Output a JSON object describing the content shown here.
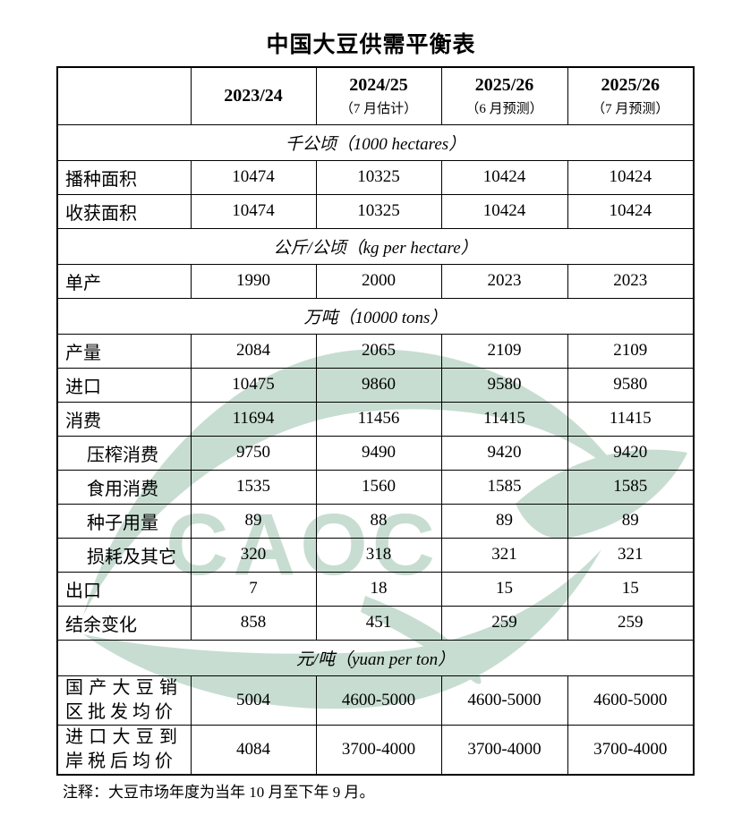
{
  "title": "中国大豆供需平衡表",
  "watermark": {
    "text": "CAOC",
    "color": "#c7ddd1"
  },
  "note": "注释：大豆市场年度为当年 10 月至下年 9 月。",
  "table": {
    "header": [
      {
        "year": "",
        "sub": ""
      },
      {
        "year": "2023/24",
        "sub": ""
      },
      {
        "year": "2024/25",
        "sub": "（7 月估计）"
      },
      {
        "year": "2025/26",
        "sub": "（6 月预测）"
      },
      {
        "year": "2025/26",
        "sub": "（7 月预测）"
      }
    ],
    "rows": [
      {
        "type": "section",
        "label": "千公顷（1000 hectares）"
      },
      {
        "type": "data",
        "label": "播种面积",
        "indent": false,
        "values": [
          "10474",
          "10325",
          "10424",
          "10424"
        ]
      },
      {
        "type": "data",
        "label": "收获面积",
        "indent": false,
        "values": [
          "10474",
          "10325",
          "10424",
          "10424"
        ]
      },
      {
        "type": "section",
        "label": "公斤/公顷（kg per hectare）"
      },
      {
        "type": "data",
        "label": "单产",
        "indent": false,
        "values": [
          "1990",
          "2000",
          "2023",
          "2023"
        ]
      },
      {
        "type": "section",
        "label": "万吨（10000 tons）"
      },
      {
        "type": "data",
        "label": "产量",
        "indent": false,
        "values": [
          "2084",
          "2065",
          "2109",
          "2109"
        ]
      },
      {
        "type": "data",
        "label": "进口",
        "indent": false,
        "values": [
          "10475",
          "9860",
          "9580",
          "9580"
        ]
      },
      {
        "type": "data",
        "label": "消费",
        "indent": false,
        "values": [
          "11694",
          "11456",
          "11415",
          "11415"
        ]
      },
      {
        "type": "data",
        "label": "压榨消费",
        "indent": true,
        "values": [
          "9750",
          "9490",
          "9420",
          "9420"
        ]
      },
      {
        "type": "data",
        "label": "食用消费",
        "indent": true,
        "values": [
          "1535",
          "1560",
          "1585",
          "1585"
        ]
      },
      {
        "type": "data",
        "label": "种子用量",
        "indent": true,
        "values": [
          "89",
          "88",
          "89",
          "89"
        ]
      },
      {
        "type": "data",
        "label": "损耗及其它",
        "indent": true,
        "values": [
          "320",
          "318",
          "321",
          "321"
        ]
      },
      {
        "type": "data",
        "label": "出口",
        "indent": false,
        "values": [
          "7",
          "18",
          "15",
          "15"
        ]
      },
      {
        "type": "data",
        "label": "结余变化",
        "indent": false,
        "values": [
          "858",
          "451",
          "259",
          "259"
        ]
      },
      {
        "type": "section",
        "label": "元/吨（yuan per ton）"
      },
      {
        "type": "data",
        "label": "国产大豆销区批发均价",
        "indent": false,
        "wrap": true,
        "values": [
          "5004",
          "4600-5000",
          "4600-5000",
          "4600-5000"
        ]
      },
      {
        "type": "data",
        "label": "进口大豆到岸税后均价",
        "indent": false,
        "wrap": true,
        "values": [
          "4084",
          "3700-4000",
          "3700-4000",
          "3700-4000"
        ]
      }
    ]
  }
}
